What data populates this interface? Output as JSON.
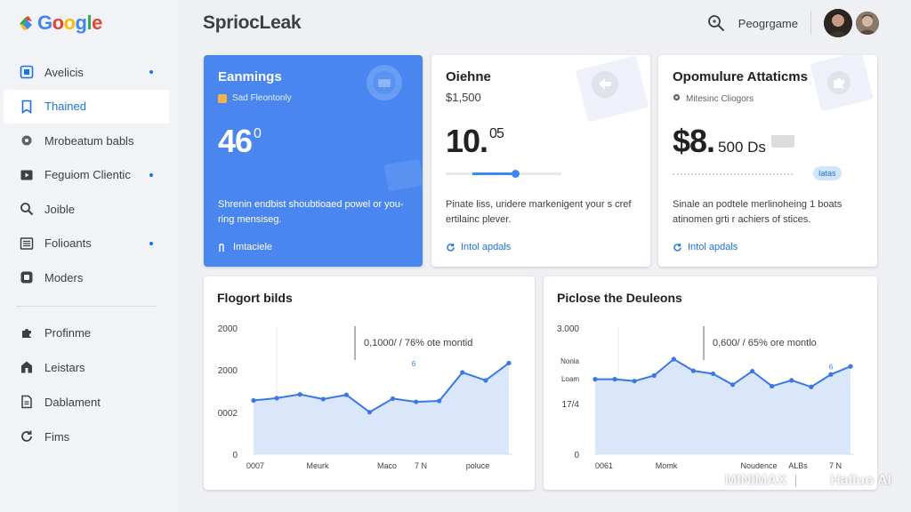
{
  "brand": {
    "logo_text_parts": [
      "G",
      "o",
      "o",
      "g",
      "l",
      "e"
    ]
  },
  "app_title": "SpriocLeak",
  "header": {
    "user_name": "Peogrgame"
  },
  "sidebar": {
    "items": [
      {
        "label": "Avelicis",
        "icon": "bar-chart-icon",
        "dot": true
      },
      {
        "label": "Thained",
        "icon": "bookmark-icon",
        "dot": false,
        "active": true
      },
      {
        "label": "Mrobeatum babls",
        "icon": "gear-icon",
        "dot": false
      },
      {
        "label": "Feguiom Clientic",
        "icon": "play-icon",
        "dot": true
      },
      {
        "label": "Joible",
        "icon": "search-icon",
        "dot": false
      },
      {
        "label": "Folioants",
        "icon": "list-icon",
        "dot": true
      },
      {
        "label": "Moders",
        "icon": "square-icon",
        "dot": false
      }
    ],
    "lower_items": [
      {
        "label": "Profinme",
        "icon": "puzzle-icon"
      },
      {
        "label": "Leistars",
        "icon": "house-icon"
      },
      {
        "label": "Dablament",
        "icon": "document-icon"
      },
      {
        "label": "Fims",
        "icon": "refresh-icon"
      }
    ]
  },
  "cards": {
    "earnings": {
      "title": "Eanmings",
      "subtitle": "Sad Fleontonly",
      "big_value": "46",
      "big_sup": "0",
      "description": "Shrenin endbist shoubtioaed powel or you-ring mensiseg.",
      "link": "Imtaciele",
      "color": "#4a86f0"
    },
    "online": {
      "title": "Oiehne",
      "price": "$1,500",
      "big_value": "10.",
      "big_sup": "05",
      "slider_fraction": 0.6,
      "description": "Pinate liss, uridere markenigent your s cref ertilainc plever.",
      "link": "Intol apdals"
    },
    "opportunity": {
      "title": "Opomulure Attaticms",
      "subtitle": "Mitesinc Cliogors",
      "big_value": "$8.",
      "big_unit": "500 Ds",
      "badge": "Iatas",
      "description": "Sinale an podtele merlinoheing 1 boats atinomen grti r achiers of stices.",
      "link": "Intol apdals"
    }
  },
  "charts": [
    {
      "title": "Flogort bilds",
      "annotation": "0,1000/ / 76% ote montid",
      "marker_label": "6",
      "y_ticks": [
        "2000",
        "2000",
        "0002",
        "0"
      ],
      "x_ticks": [
        "0007",
        "Meurk",
        "Maco",
        "7 N",
        "poluce"
      ]
    },
    {
      "title": "Piclose the Deuleons",
      "annotation": "0,600/ / 65% ore montlo",
      "marker_label": "6",
      "y_ticks": [
        "3.000",
        "Nonia",
        "Loam",
        "17/4",
        "0"
      ],
      "x_ticks": [
        "0061",
        "Momk",
        "Noudence",
        "ALBs",
        "7 N"
      ]
    }
  ],
  "chart_data": [
    {
      "type": "area",
      "title": "Flogort bilds",
      "x": [
        0,
        1,
        2,
        3,
        4,
        5,
        6,
        7,
        8,
        9,
        10,
        11
      ],
      "y_ticks": [
        "2000",
        "2000",
        "0002",
        "0"
      ],
      "values": [
        1150,
        1200,
        1280,
        1180,
        1270,
        900,
        1190,
        1120,
        1140,
        1750,
        1580,
        1950
      ],
      "ylim": [
        0,
        2700
      ]
    },
    {
      "type": "area",
      "title": "Piclose the Deuleons",
      "x": [
        0,
        1,
        2,
        3,
        4,
        5,
        6,
        7,
        8,
        9,
        10,
        11,
        12,
        13
      ],
      "y_ticks": [
        "3.000",
        "Nonia",
        "Loam",
        "17/4",
        "0"
      ],
      "values": [
        2050,
        2050,
        2000,
        2150,
        2600,
        2280,
        2200,
        1900,
        2270,
        1860,
        2020,
        1840,
        2180,
        2400
      ],
      "ylim": [
        0,
        3450
      ]
    }
  ],
  "watermark": {
    "left": "MINIMAX",
    "right": "Hailuo AI"
  }
}
